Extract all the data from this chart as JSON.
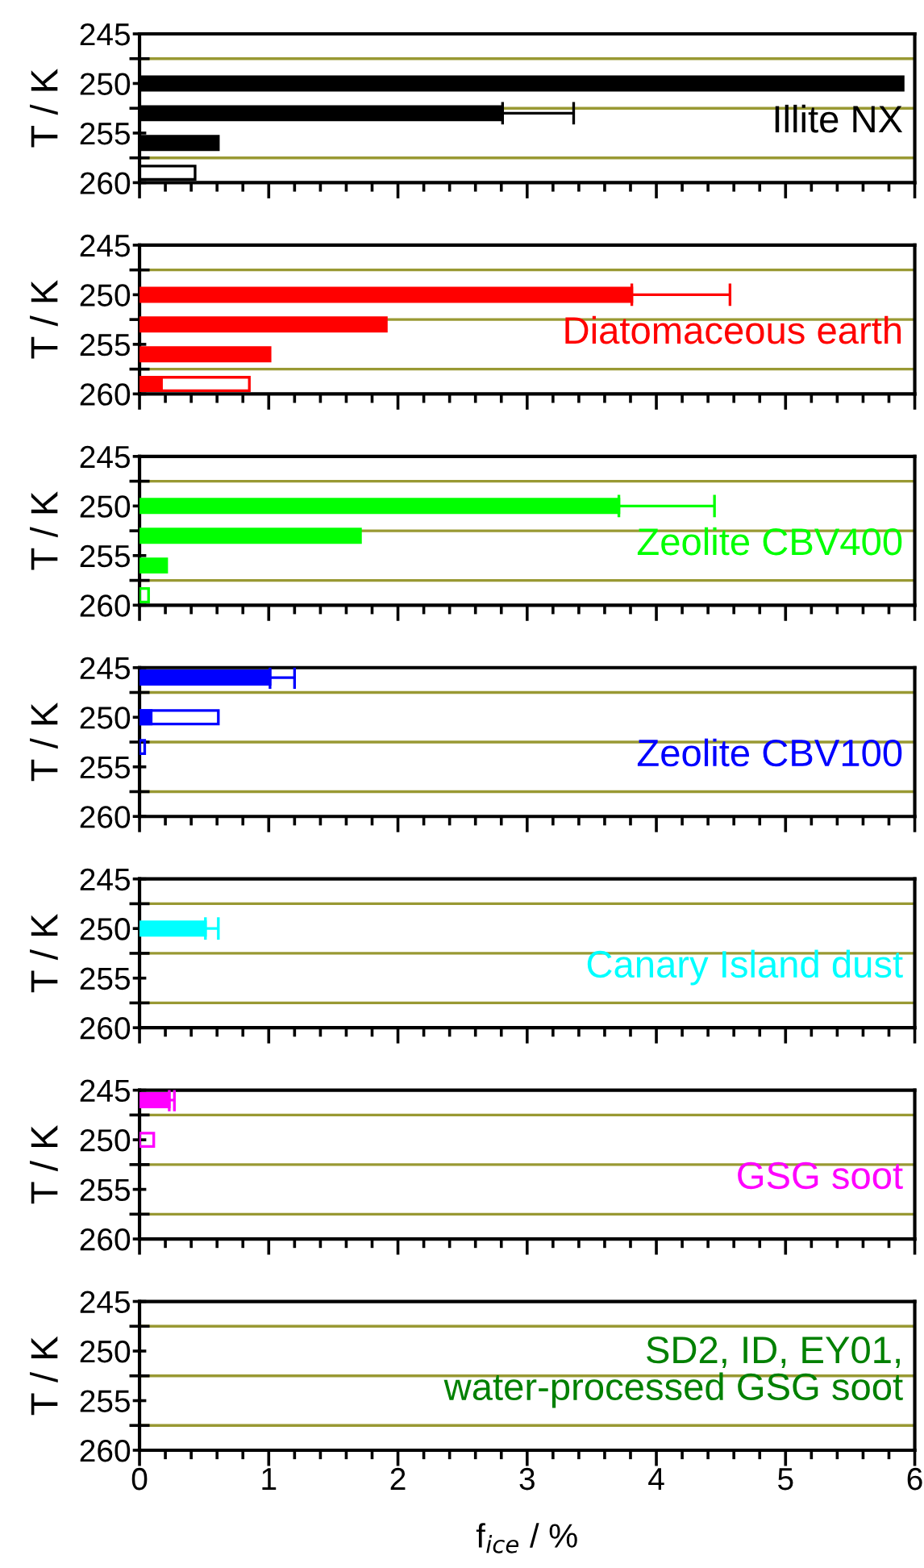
{
  "chart_data": [
    {
      "type": "bar",
      "orientation": "horizontal",
      "title": "Illite NX",
      "color": "#000000",
      "ylabel": "T / K",
      "ylim": [
        260,
        245
      ],
      "yticks": [
        245,
        {
          "value": 247.5,
          "label": null
        },
        250,
        {
          "value": 252.5,
          "label": null
        },
        255,
        {
          "value": 257.5,
          "label": null
        },
        260
      ],
      "xlim": [
        0,
        6
      ],
      "xticks": [
        0,
        {
          "value": 0.2,
          "label": null
        },
        {
          "value": 0.4,
          "label": null
        },
        {
          "value": 0.6,
          "label": null
        },
        {
          "value": 0.8,
          "label": null
        },
        1,
        {
          "value": 1.2,
          "label": null
        },
        {
          "value": 1.4,
          "label": null
        },
        {
          "value": 1.6,
          "label": null
        },
        {
          "value": 1.8,
          "label": null
        },
        2,
        {
          "value": 2.2,
          "label": null
        },
        {
          "value": 2.4,
          "label": null
        },
        {
          "value": 2.6,
          "label": null
        },
        {
          "value": 2.8,
          "label": null
        },
        3,
        {
          "value": 3.2,
          "label": null
        },
        {
          "value": 3.4,
          "label": null
        },
        {
          "value": 3.6,
          "label": null
        },
        {
          "value": 3.8,
          "label": null
        },
        4,
        {
          "value": 4.2,
          "label": null
        },
        {
          "value": 4.4,
          "label": null
        },
        {
          "value": 4.6,
          "label": null
        },
        {
          "value": 4.8,
          "label": null
        },
        5,
        {
          "value": 5.2,
          "label": null
        },
        {
          "value": 5.4,
          "label": null
        },
        {
          "value": 5.6,
          "label": null
        },
        {
          "value": 5.8,
          "label": null
        },
        6
      ],
      "tick_labels": "y",
      "legend": false,
      "grid": false,
      "ref_lines": [
        {
          "axis": "y",
          "value": 247.5,
          "color": "#999933"
        },
        {
          "axis": "y",
          "value": 252.5,
          "color": "#999933"
        },
        {
          "axis": "y",
          "value": 257.5,
          "color": "#999933"
        }
      ],
      "series": [
        {
          "color": "#000000",
          "x": [
            250,
            253,
            256
          ],
          "values": [
            5.91,
            2.81,
            0.61
          ],
          "errors": [
            null,
            [
              2.81,
              3.36
            ],
            null
          ]
        },
        {
          "color": "#000000",
          "line_style": "solid",
          "x": [
            259
          ],
          "values": [
            0.43
          ]
        }
      ]
    },
    {
      "type": "bar",
      "orientation": "horizontal",
      "title": "Diatomaceous earth",
      "color": "#ff0000",
      "ylabel": "T / K",
      "ylim": [
        260,
        245
      ],
      "yticks": [
        245,
        {
          "value": 247.5,
          "label": null
        },
        250,
        {
          "value": 252.5,
          "label": null
        },
        255,
        {
          "value": 257.5,
          "label": null
        },
        260
      ],
      "xlim": [
        0,
        6
      ],
      "xticks": [
        0,
        {
          "value": 0.2,
          "label": null
        },
        {
          "value": 0.4,
          "label": null
        },
        {
          "value": 0.6,
          "label": null
        },
        {
          "value": 0.8,
          "label": null
        },
        1,
        {
          "value": 1.2,
          "label": null
        },
        {
          "value": 1.4,
          "label": null
        },
        {
          "value": 1.6,
          "label": null
        },
        {
          "value": 1.8,
          "label": null
        },
        2,
        {
          "value": 2.2,
          "label": null
        },
        {
          "value": 2.4,
          "label": null
        },
        {
          "value": 2.6,
          "label": null
        },
        {
          "value": 2.8,
          "label": null
        },
        3,
        {
          "value": 3.2,
          "label": null
        },
        {
          "value": 3.4,
          "label": null
        },
        {
          "value": 3.6,
          "label": null
        },
        {
          "value": 3.8,
          "label": null
        },
        4,
        {
          "value": 4.2,
          "label": null
        },
        {
          "value": 4.4,
          "label": null
        },
        {
          "value": 4.6,
          "label": null
        },
        {
          "value": 4.8,
          "label": null
        },
        5,
        {
          "value": 5.2,
          "label": null
        },
        {
          "value": 5.4,
          "label": null
        },
        {
          "value": 5.6,
          "label": null
        },
        {
          "value": 5.8,
          "label": null
        },
        6
      ],
      "tick_labels": "y",
      "legend": false,
      "grid": false,
      "ref_lines": [
        {
          "axis": "y",
          "value": 247.5,
          "color": "#999933"
        },
        {
          "axis": "y",
          "value": 252.5,
          "color": "#999933"
        },
        {
          "axis": "y",
          "value": 257.5,
          "color": "#999933"
        }
      ],
      "series": [
        {
          "color": "#ff0000",
          "x": [
            250,
            253,
            256,
            259
          ],
          "values": [
            3.81,
            1.91,
            1.01,
            0.17
          ],
          "errors": [
            [
              3.81,
              4.57
            ],
            null,
            null,
            null
          ]
        },
        {
          "color": "#ff0000",
          "line_style": "solid",
          "x": [
            259
          ],
          "values": [
            0.85
          ]
        }
      ]
    },
    {
      "type": "bar",
      "orientation": "horizontal",
      "title": "Zeolite CBV400",
      "color": "#00ff00",
      "ylabel": "T / K",
      "ylim": [
        260,
        245
      ],
      "yticks": [
        245,
        {
          "value": 247.5,
          "label": null
        },
        250,
        {
          "value": 252.5,
          "label": null
        },
        255,
        {
          "value": 257.5,
          "label": null
        },
        260
      ],
      "xlim": [
        0,
        6
      ],
      "xticks": [
        0,
        {
          "value": 0.2,
          "label": null
        },
        {
          "value": 0.4,
          "label": null
        },
        {
          "value": 0.6,
          "label": null
        },
        {
          "value": 0.8,
          "label": null
        },
        1,
        {
          "value": 1.2,
          "label": null
        },
        {
          "value": 1.4,
          "label": null
        },
        {
          "value": 1.6,
          "label": null
        },
        {
          "value": 1.8,
          "label": null
        },
        2,
        {
          "value": 2.2,
          "label": null
        },
        {
          "value": 2.4,
          "label": null
        },
        {
          "value": 2.6,
          "label": null
        },
        {
          "value": 2.8,
          "label": null
        },
        3,
        {
          "value": 3.2,
          "label": null
        },
        {
          "value": 3.4,
          "label": null
        },
        {
          "value": 3.6,
          "label": null
        },
        {
          "value": 3.8,
          "label": null
        },
        4,
        {
          "value": 4.2,
          "label": null
        },
        {
          "value": 4.4,
          "label": null
        },
        {
          "value": 4.6,
          "label": null
        },
        {
          "value": 4.8,
          "label": null
        },
        5,
        {
          "value": 5.2,
          "label": null
        },
        {
          "value": 5.4,
          "label": null
        },
        {
          "value": 5.6,
          "label": null
        },
        {
          "value": 5.8,
          "label": null
        },
        6
      ],
      "tick_labels": "y",
      "legend": false,
      "grid": false,
      "ref_lines": [
        {
          "axis": "y",
          "value": 247.5,
          "color": "#999933"
        },
        {
          "axis": "y",
          "value": 252.5,
          "color": "#999933"
        },
        {
          "axis": "y",
          "value": 257.5,
          "color": "#999933"
        }
      ],
      "series": [
        {
          "color": "#00ff00",
          "x": [
            250,
            253,
            256
          ],
          "values": [
            3.71,
            1.71,
            0.21
          ],
          "errors": [
            [
              3.71,
              4.45
            ],
            null,
            null
          ]
        },
        {
          "color": "#00ff00",
          "line_style": "solid",
          "x": [
            259
          ],
          "values": [
            0.07
          ]
        }
      ]
    },
    {
      "type": "bar",
      "orientation": "horizontal",
      "title": "Zeolite CBV100",
      "color": "#0000ff",
      "ylabel": "T / K",
      "ylim": [
        260,
        245
      ],
      "yticks": [
        245,
        {
          "value": 247.5,
          "label": null
        },
        250,
        {
          "value": 252.5,
          "label": null
        },
        255,
        {
          "value": 257.5,
          "label": null
        },
        260
      ],
      "xlim": [
        0,
        6
      ],
      "xticks": [
        0,
        {
          "value": 0.2,
          "label": null
        },
        {
          "value": 0.4,
          "label": null
        },
        {
          "value": 0.6,
          "label": null
        },
        {
          "value": 0.8,
          "label": null
        },
        1,
        {
          "value": 1.2,
          "label": null
        },
        {
          "value": 1.4,
          "label": null
        },
        {
          "value": 1.6,
          "label": null
        },
        {
          "value": 1.8,
          "label": null
        },
        2,
        {
          "value": 2.2,
          "label": null
        },
        {
          "value": 2.4,
          "label": null
        },
        {
          "value": 2.6,
          "label": null
        },
        {
          "value": 2.8,
          "label": null
        },
        3,
        {
          "value": 3.2,
          "label": null
        },
        {
          "value": 3.4,
          "label": null
        },
        {
          "value": 3.6,
          "label": null
        },
        {
          "value": 3.8,
          "label": null
        },
        4,
        {
          "value": 4.2,
          "label": null
        },
        {
          "value": 4.4,
          "label": null
        },
        {
          "value": 4.6,
          "label": null
        },
        {
          "value": 4.8,
          "label": null
        },
        5,
        {
          "value": 5.2,
          "label": null
        },
        {
          "value": 5.4,
          "label": null
        },
        {
          "value": 5.6,
          "label": null
        },
        {
          "value": 5.8,
          "label": null
        },
        6
      ],
      "tick_labels": "y",
      "legend": false,
      "grid": false,
      "ref_lines": [
        {
          "axis": "y",
          "value": 247.5,
          "color": "#999933"
        },
        {
          "axis": "y",
          "value": 252.5,
          "color": "#999933"
        },
        {
          "axis": "y",
          "value": 257.5,
          "color": "#999933"
        }
      ],
      "series": [
        {
          "color": "#0000ff",
          "x": [
            246,
            250
          ],
          "values": [
            1.01,
            0.09
          ],
          "errors": [
            [
              1.01,
              1.2
            ],
            null
          ]
        },
        {
          "color": "#0000ff",
          "line_style": "solid",
          "x": [
            250,
            253
          ],
          "values": [
            0.61,
            0.04
          ]
        }
      ]
    },
    {
      "type": "bar",
      "orientation": "horizontal",
      "title": "Canary Island dust",
      "color": "#00ffff",
      "ylabel": "T / K",
      "ylim": [
        260,
        245
      ],
      "yticks": [
        245,
        {
          "value": 247.5,
          "label": null
        },
        250,
        {
          "value": 252.5,
          "label": null
        },
        255,
        {
          "value": 257.5,
          "label": null
        },
        260
      ],
      "xlim": [
        0,
        6
      ],
      "xticks": [
        0,
        {
          "value": 0.2,
          "label": null
        },
        {
          "value": 0.4,
          "label": null
        },
        {
          "value": 0.6,
          "label": null
        },
        {
          "value": 0.8,
          "label": null
        },
        1,
        {
          "value": 1.2,
          "label": null
        },
        {
          "value": 1.4,
          "label": null
        },
        {
          "value": 1.6,
          "label": null
        },
        {
          "value": 1.8,
          "label": null
        },
        2,
        {
          "value": 2.2,
          "label": null
        },
        {
          "value": 2.4,
          "label": null
        },
        {
          "value": 2.6,
          "label": null
        },
        {
          "value": 2.8,
          "label": null
        },
        3,
        {
          "value": 3.2,
          "label": null
        },
        {
          "value": 3.4,
          "label": null
        },
        {
          "value": 3.6,
          "label": null
        },
        {
          "value": 3.8,
          "label": null
        },
        4,
        {
          "value": 4.2,
          "label": null
        },
        {
          "value": 4.4,
          "label": null
        },
        {
          "value": 4.6,
          "label": null
        },
        {
          "value": 4.8,
          "label": null
        },
        5,
        {
          "value": 5.2,
          "label": null
        },
        {
          "value": 5.4,
          "label": null
        },
        {
          "value": 5.6,
          "label": null
        },
        {
          "value": 5.8,
          "label": null
        },
        6
      ],
      "tick_labels": "y",
      "legend": false,
      "grid": false,
      "ref_lines": [
        {
          "axis": "y",
          "value": 247.5,
          "color": "#999933"
        },
        {
          "axis": "y",
          "value": 252.5,
          "color": "#999933"
        },
        {
          "axis": "y",
          "value": 257.5,
          "color": "#999933"
        }
      ],
      "series": [
        {
          "color": "#00ffff",
          "x": [
            250
          ],
          "values": [
            0.51
          ],
          "errors": [
            [
              0.51,
              0.61
            ]
          ]
        }
      ]
    },
    {
      "type": "bar",
      "orientation": "horizontal",
      "title": "GSG soot",
      "color": "#ff00ff",
      "ylabel": "T / K",
      "ylim": [
        260,
        245
      ],
      "yticks": [
        245,
        {
          "value": 247.5,
          "label": null
        },
        250,
        {
          "value": 252.5,
          "label": null
        },
        255,
        {
          "value": 257.5,
          "label": null
        },
        260
      ],
      "xlim": [
        0,
        6
      ],
      "xticks": [
        0,
        {
          "value": 0.2,
          "label": null
        },
        {
          "value": 0.4,
          "label": null
        },
        {
          "value": 0.6,
          "label": null
        },
        {
          "value": 0.8,
          "label": null
        },
        1,
        {
          "value": 1.2,
          "label": null
        },
        {
          "value": 1.4,
          "label": null
        },
        {
          "value": 1.6,
          "label": null
        },
        {
          "value": 1.8,
          "label": null
        },
        2,
        {
          "value": 2.2,
          "label": null
        },
        {
          "value": 2.4,
          "label": null
        },
        {
          "value": 2.6,
          "label": null
        },
        {
          "value": 2.8,
          "label": null
        },
        3,
        {
          "value": 3.2,
          "label": null
        },
        {
          "value": 3.4,
          "label": null
        },
        {
          "value": 3.6,
          "label": null
        },
        {
          "value": 3.8,
          "label": null
        },
        4,
        {
          "value": 4.2,
          "label": null
        },
        {
          "value": 4.4,
          "label": null
        },
        {
          "value": 4.6,
          "label": null
        },
        {
          "value": 4.8,
          "label": null
        },
        5,
        {
          "value": 5.2,
          "label": null
        },
        {
          "value": 5.4,
          "label": null
        },
        {
          "value": 5.6,
          "label": null
        },
        {
          "value": 5.8,
          "label": null
        },
        6
      ],
      "tick_labels": "y",
      "legend": false,
      "grid": false,
      "ref_lines": [
        {
          "axis": "y",
          "value": 247.5,
          "color": "#999933"
        },
        {
          "axis": "y",
          "value": 252.5,
          "color": "#999933"
        },
        {
          "axis": "y",
          "value": 257.5,
          "color": "#999933"
        }
      ],
      "series": [
        {
          "color": "#ff00ff",
          "x": [
            246
          ],
          "values": [
            0.23
          ],
          "errors": [
            [
              0.23,
              0.27
            ]
          ]
        },
        {
          "color": "#ff00ff",
          "line_style": "solid",
          "x": [
            250
          ],
          "values": [
            0.11
          ]
        }
      ]
    },
    {
      "type": "bar",
      "orientation": "horizontal",
      "title": "SD2, ID, EY01,\nwater-processed GSG soot",
      "color": "#008000",
      "ylabel": "T / K",
      "xlabel": "f$_{ice}$ / %",
      "ylim": [
        260,
        245
      ],
      "yticks": [
        245,
        {
          "value": 247.5,
          "label": null
        },
        250,
        {
          "value": 252.5,
          "label": null
        },
        255,
        {
          "value": 257.5,
          "label": null
        },
        260
      ],
      "xlim": [
        0,
        6
      ],
      "xticks": [
        0,
        {
          "value": 0.2,
          "label": null
        },
        {
          "value": 0.4,
          "label": null
        },
        {
          "value": 0.6,
          "label": null
        },
        {
          "value": 0.8,
          "label": null
        },
        1,
        {
          "value": 1.2,
          "label": null
        },
        {
          "value": 1.4,
          "label": null
        },
        {
          "value": 1.6,
          "label": null
        },
        {
          "value": 1.8,
          "label": null
        },
        2,
        {
          "value": 2.2,
          "label": null
        },
        {
          "value": 2.4,
          "label": null
        },
        {
          "value": 2.6,
          "label": null
        },
        {
          "value": 2.8,
          "label": null
        },
        3,
        {
          "value": 3.2,
          "label": null
        },
        {
          "value": 3.4,
          "label": null
        },
        {
          "value": 3.6,
          "label": null
        },
        {
          "value": 3.8,
          "label": null
        },
        4,
        {
          "value": 4.2,
          "label": null
        },
        {
          "value": 4.4,
          "label": null
        },
        {
          "value": 4.6,
          "label": null
        },
        {
          "value": 4.8,
          "label": null
        },
        5,
        {
          "value": 5.2,
          "label": null
        },
        {
          "value": 5.4,
          "label": null
        },
        {
          "value": 5.6,
          "label": null
        },
        {
          "value": 5.8,
          "label": null
        },
        6
      ],
      "legend": false,
      "grid": false,
      "ref_lines": [
        {
          "axis": "y",
          "value": 247.5,
          "color": "#999933"
        },
        {
          "axis": "y",
          "value": 252.5,
          "color": "#999933"
        },
        {
          "axis": "y",
          "value": 257.5,
          "color": "#999933"
        }
      ]
    }
  ]
}
